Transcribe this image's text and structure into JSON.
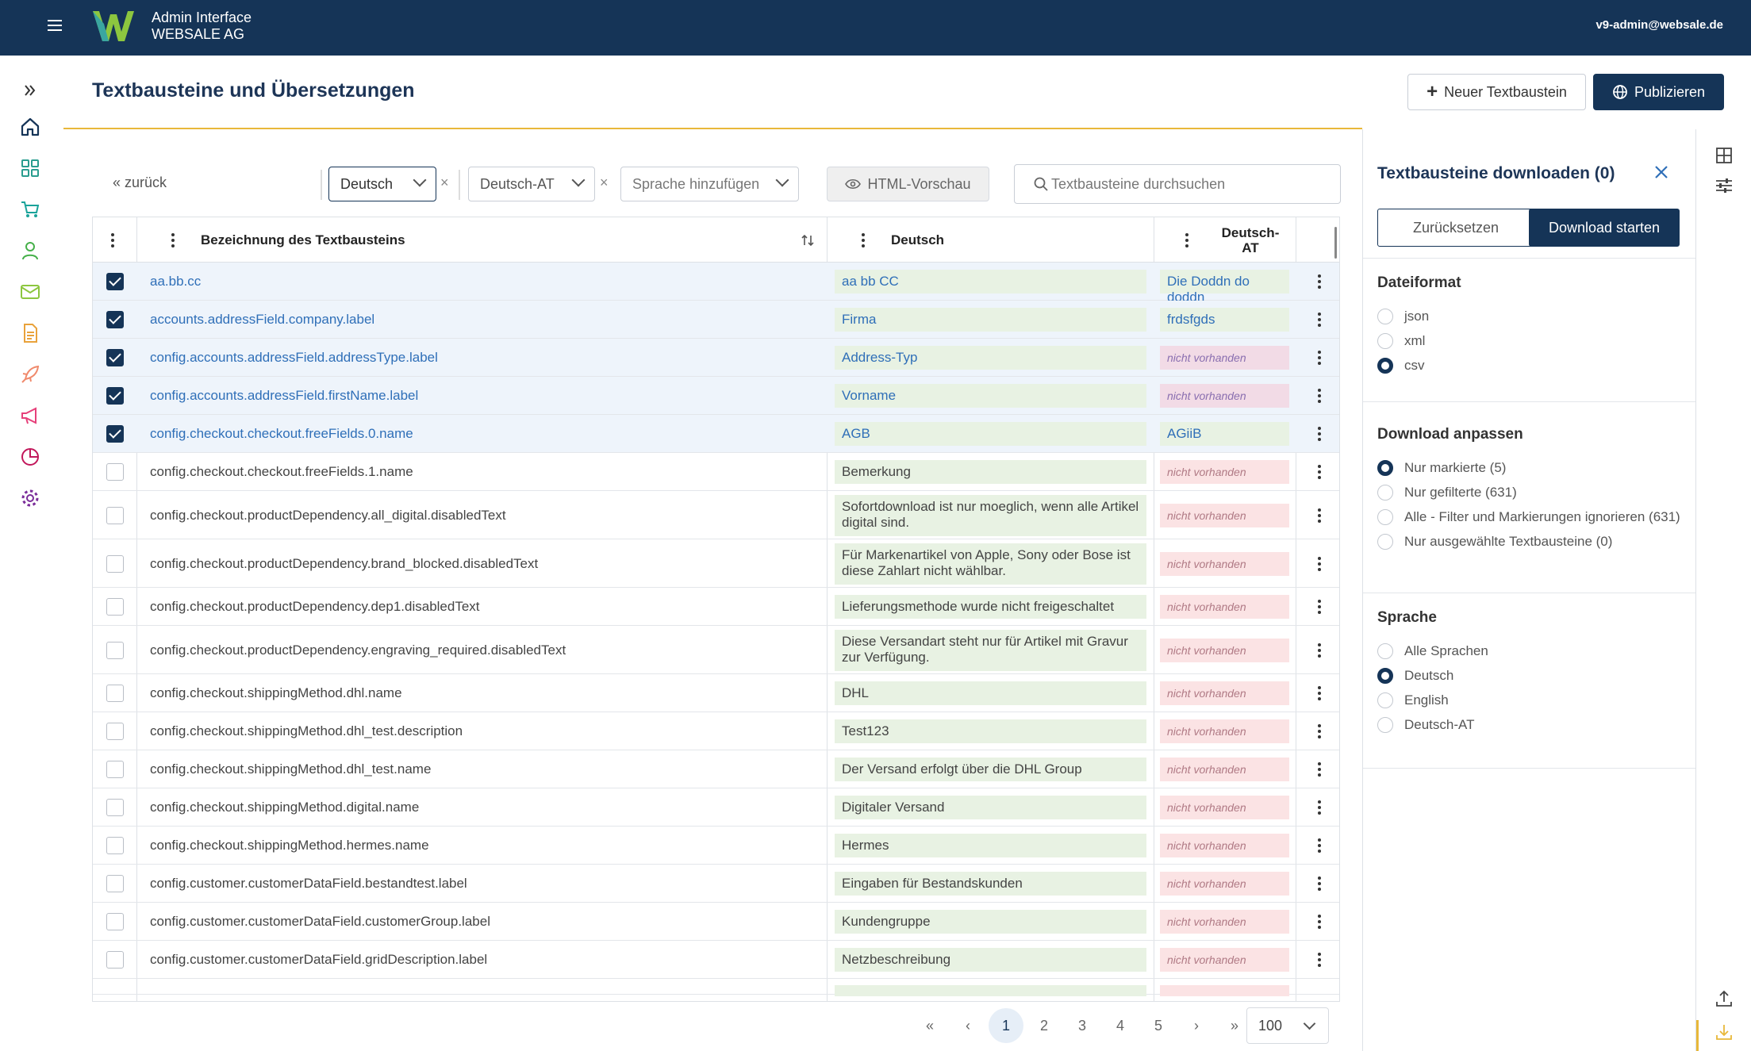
{
  "topbar": {
    "app_name": "Admin Interface",
    "company": "WEBSALE AG",
    "user_email": "v9-admin@websale.de"
  },
  "page": {
    "title": "Textbausteine und Übersetzungen",
    "new_button": "Neuer Textbaustein",
    "publish_button": "Publizieren"
  },
  "filters": {
    "back": "« zurück",
    "lang1": "Deutsch",
    "lang2": "Deutsch-AT",
    "add_language_placeholder": "Sprache hinzufügen",
    "html_preview": "HTML-Vorschau",
    "search_placeholder": "Textbausteine durchsuchen"
  },
  "table": {
    "col_key": "Bezeichnung des Textbausteins",
    "col_de": "Deutsch",
    "col_at": "Deutsch-AT",
    "missing_label": "nicht vorhanden",
    "rows": [
      {
        "key": "aa.bb.cc",
        "de": "aa bb CC",
        "at": "Die Doddn do doddn",
        "selected": true
      },
      {
        "key": "accounts.addressField.company.label",
        "de": "Firma",
        "at": "frdsfgds",
        "selected": true
      },
      {
        "key": "config.accounts.addressField.addressType.label",
        "de": "Address-Typ",
        "at": "nicht vorhanden",
        "selected": true
      },
      {
        "key": "config.accounts.addressField.firstName.label",
        "de": "Vorname",
        "at": "nicht vorhanden",
        "selected": true
      },
      {
        "key": "config.checkout.checkout.freeFields.0.name",
        "de": "AGB",
        "at": "AGiiB",
        "selected": true
      },
      {
        "key": "config.checkout.checkout.freeFields.1.name",
        "de": "Bemerkung",
        "at": "nicht vorhanden",
        "selected": false
      },
      {
        "key": "config.checkout.productDependency.all_digital.disabledText",
        "de": "Sofortdownload ist nur moeglich, wenn alle Artikel digital sind.",
        "at": "nicht vorhanden",
        "selected": false
      },
      {
        "key": "config.checkout.productDependency.brand_blocked.disabledText",
        "de": "Für Markenartikel von Apple, Sony oder Bose ist diese Zahlart nicht wählbar.",
        "at": "nicht vorhanden",
        "selected": false
      },
      {
        "key": "config.checkout.productDependency.dep1.disabledText",
        "de": "Lieferungsmethode wurde nicht freigeschaltet",
        "at": "nicht vorhanden",
        "selected": false
      },
      {
        "key": "config.checkout.productDependency.engraving_required.disabledText",
        "de": "Diese Versandart steht nur für Artikel mit Gravur zur Verfügung.",
        "at": "nicht vorhanden",
        "selected": false
      },
      {
        "key": "config.checkout.shippingMethod.dhl.name",
        "de": "DHL",
        "at": "nicht vorhanden",
        "selected": false
      },
      {
        "key": "config.checkout.shippingMethod.dhl_test.description",
        "de": "Test123",
        "at": "nicht vorhanden",
        "selected": false
      },
      {
        "key": "config.checkout.shippingMethod.dhl_test.name",
        "de": "Der Versand erfolgt über die DHL Group",
        "at": "nicht vorhanden",
        "selected": false
      },
      {
        "key": "config.checkout.shippingMethod.digital.name",
        "de": "Digitaler Versand",
        "at": "nicht vorhanden",
        "selected": false
      },
      {
        "key": "config.checkout.shippingMethod.hermes.name",
        "de": "Hermes",
        "at": "nicht vorhanden",
        "selected": false
      },
      {
        "key": "config.customer.customerDataField.bestandtest.label",
        "de": "Eingaben für Bestandskunden",
        "at": "nicht vorhanden",
        "selected": false
      },
      {
        "key": "config.customer.customerDataField.customerGroup.label",
        "de": "Kundengruppe",
        "at": "nicht vorhanden",
        "selected": false
      },
      {
        "key": "config.customer.customerDataField.gridDescription.label",
        "de": "Netzbeschreibung",
        "at": "nicht vorhanden",
        "selected": false
      }
    ]
  },
  "pagination": {
    "first": "«",
    "prev": "‹",
    "pages": [
      "1",
      "2",
      "3",
      "4",
      "5"
    ],
    "current": "1",
    "next": "›",
    "last": "»",
    "page_size": "100"
  },
  "panel": {
    "title": "Textbausteine downloaden (0)",
    "reset_button": "Zurücksetzen",
    "download_button": "Download starten",
    "format_heading": "Dateiformat",
    "formats": [
      {
        "label": "json",
        "checked": false
      },
      {
        "label": "xml",
        "checked": false
      },
      {
        "label": "csv",
        "checked": true
      }
    ],
    "scope_heading": "Download anpassen",
    "scopes": [
      {
        "label": "Nur markierte (5)",
        "checked": true
      },
      {
        "label": "Nur gefilterte (631)",
        "checked": false
      },
      {
        "label": "Alle - Filter und Markierungen ignorieren (631)",
        "checked": false
      },
      {
        "label": "Nur ausgewählte Textbausteine (0)",
        "checked": false
      }
    ],
    "language_heading": "Sprache",
    "languages": [
      {
        "label": "Alle Sprachen",
        "checked": false
      },
      {
        "label": "Deutsch",
        "checked": true
      },
      {
        "label": "English",
        "checked": false
      },
      {
        "label": "Deutsch-AT",
        "checked": false
      }
    ]
  },
  "colors": {
    "navy": "#153457",
    "accent": "#e8b83a",
    "link_blue": "#2f6fb8",
    "translated_bg": "#e8f2e3",
    "missing_bg": "#fbe3e4"
  },
  "icons": {
    "rail": [
      "expand-icon",
      "home-icon",
      "dashboard-icon",
      "cart-icon",
      "user-icon",
      "mail-icon",
      "document-icon",
      "rocket-icon",
      "megaphone-icon",
      "pie-chart-icon",
      "settings-icon"
    ],
    "right_rail": [
      "table-icon",
      "sliders-icon",
      "upload-icon",
      "download-icon"
    ]
  }
}
